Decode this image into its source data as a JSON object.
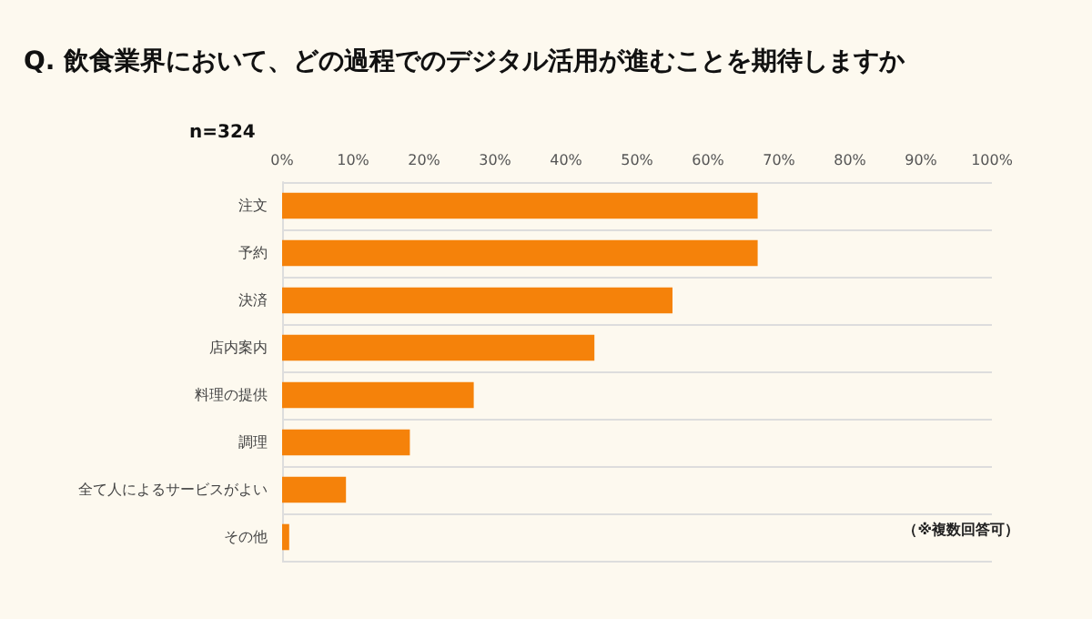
{
  "chart_data": {
    "type": "bar",
    "orientation": "horizontal",
    "title": "Q. 飲食業界において、どの過程でのデジタル活用が進むことを期待しますか",
    "categories": [
      "注文",
      "予約",
      "決済",
      "店内案内",
      "料理の提供",
      "調理",
      "全て人によるサービスがよい",
      "その他"
    ],
    "values": [
      67,
      67,
      55,
      44,
      27,
      18,
      9,
      1
    ],
    "color": "#f5820a",
    "xlim": [
      0,
      100
    ],
    "xticks": [
      {
        "value": 0,
        "label": "0%"
      },
      {
        "value": 10,
        "label": "10%"
      },
      {
        "value": 20,
        "label": "20%"
      },
      {
        "value": 30,
        "label": "30%"
      },
      {
        "value": 40,
        "label": "40%"
      },
      {
        "value": 50,
        "label": "50%"
      },
      {
        "value": 60,
        "label": "60%"
      },
      {
        "value": 70,
        "label": "70%"
      },
      {
        "value": 80,
        "label": "80%"
      },
      {
        "value": 90,
        "label": "90%"
      },
      {
        "value": 100,
        "label": "100%"
      }
    ],
    "grid": "y",
    "annotations": [
      "n=324",
      "（※複数回答可）"
    ]
  }
}
